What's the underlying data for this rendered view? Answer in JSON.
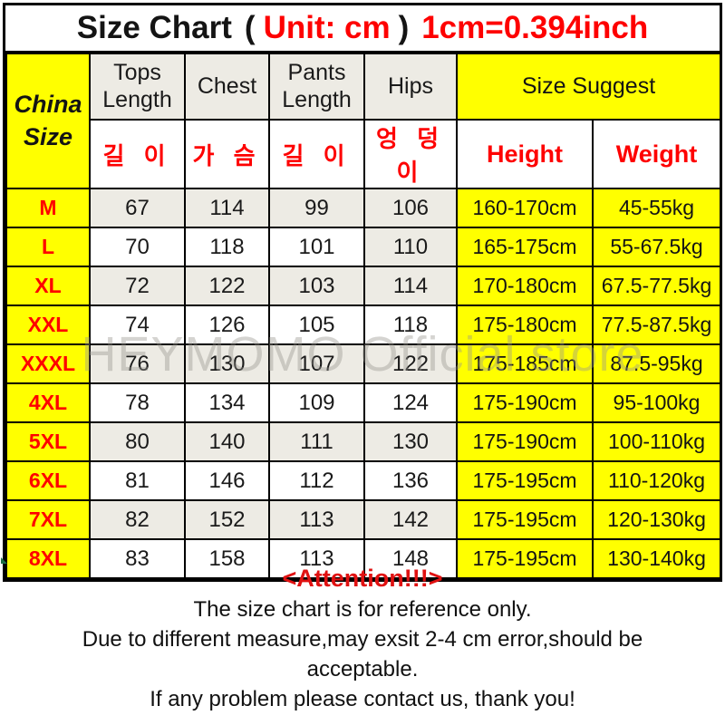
{
  "title": {
    "product": "Size Chart",
    "open_paren": "(",
    "unit": "Unit: cm",
    "close_paren": ")",
    "conversion": "1cm=0.394inch"
  },
  "table": {
    "corner_line1": "China",
    "corner_line2": "Size",
    "col_headers_en": [
      "Tops Length",
      "Chest",
      "Pants Length",
      "Hips"
    ],
    "size_suggest_label": "Size Suggest",
    "col_headers_kr": [
      "길 이",
      "가 슴",
      "길 이",
      "엉 덩 이"
    ],
    "height_label": "Height",
    "weight_label": "Weight",
    "rows": [
      {
        "size": "M",
        "tops": "67",
        "chest": "114",
        "pants": "99",
        "hips": "106",
        "height": "160-170cm",
        "weight": "45-55kg",
        "shade": [
          "g",
          "g",
          "g",
          "g"
        ]
      },
      {
        "size": "L",
        "tops": "70",
        "chest": "118",
        "pants": "101",
        "hips": "110",
        "height": "165-175cm",
        "weight": "55-67.5kg",
        "shade": [
          "w",
          "w",
          "w",
          "g"
        ]
      },
      {
        "size": "XL",
        "tops": "72",
        "chest": "122",
        "pants": "103",
        "hips": "114",
        "height": "170-180cm",
        "weight": "67.5-77.5kg",
        "shade": [
          "g",
          "g",
          "g",
          "g"
        ]
      },
      {
        "size": "XXL",
        "tops": "74",
        "chest": "126",
        "pants": "105",
        "hips": "118",
        "height": "175-180cm",
        "weight": "77.5-87.5kg",
        "shade": [
          "w",
          "w",
          "w",
          "w"
        ]
      },
      {
        "size": "XXXL",
        "tops": "76",
        "chest": "130",
        "pants": "107",
        "hips": "122",
        "height": "175-185cm",
        "weight": "87.5-95kg",
        "shade": [
          "g",
          "g",
          "g",
          "g"
        ]
      },
      {
        "size": "4XL",
        "tops": "78",
        "chest": "134",
        "pants": "109",
        "hips": "124",
        "height": "175-190cm",
        "weight": "95-100kg",
        "shade": [
          "w",
          "w",
          "w",
          "w"
        ]
      },
      {
        "size": "5XL",
        "tops": "80",
        "chest": "140",
        "pants": "111",
        "hips": "130",
        "height": "175-190cm",
        "weight": "100-110kg",
        "shade": [
          "g",
          "g",
          "g",
          "g"
        ]
      },
      {
        "size": "6XL",
        "tops": "81",
        "chest": "146",
        "pants": "112",
        "hips": "136",
        "height": "175-195cm",
        "weight": "110-120kg",
        "shade": [
          "w",
          "w",
          "w",
          "w"
        ]
      },
      {
        "size": "7XL",
        "tops": "82",
        "chest": "152",
        "pants": "113",
        "hips": "142",
        "height": "175-195cm",
        "weight": "120-130kg",
        "shade": [
          "g",
          "g",
          "g",
          "g"
        ]
      },
      {
        "size": "8XL",
        "tops": "83",
        "chest": "158",
        "pants": "113",
        "hips": "148",
        "height": "175-195cm",
        "weight": "130-140kg",
        "shade": [
          "w",
          "w",
          "w",
          "w"
        ]
      }
    ]
  },
  "watermark": "HEYMOMO Official store",
  "footer": {
    "attention": "<Attention!!!>",
    "lines": [
      "The size chart is for reference only.",
      "Due to different measure,may exsit 2-4 cm error,should be",
      "acceptable.",
      "If any problem please contact us, thank you!"
    ]
  },
  "colors": {
    "yellow": "#FFFF00",
    "red_text": "#FE0000",
    "attention_red": "#E01111",
    "shaded_cell": "#EDEBE4",
    "border": "#000000",
    "watermark_gray": "#98968F",
    "corner_artifact_green": "#1E7145"
  },
  "chart_data": {
    "type": "table",
    "title": "Size Chart ( Unit: cm ) 1cm=0.394inch",
    "columns": [
      "China Size",
      "Tops Length 길이 (cm)",
      "Chest 가슴 (cm)",
      "Pants Length 길이 (cm)",
      "Hips 엉덩이 (cm)",
      "Height",
      "Weight"
    ],
    "rows": [
      [
        "M",
        67,
        114,
        99,
        106,
        "160-170cm",
        "45-55kg"
      ],
      [
        "L",
        70,
        118,
        101,
        110,
        "165-175cm",
        "55-67.5kg"
      ],
      [
        "XL",
        72,
        122,
        103,
        114,
        "170-180cm",
        "67.5-77.5kg"
      ],
      [
        "XXL",
        74,
        126,
        105,
        118,
        "175-180cm",
        "77.5-87.5kg"
      ],
      [
        "XXXL",
        76,
        130,
        107,
        122,
        "175-185cm",
        "87.5-95kg"
      ],
      [
        "4XL",
        78,
        134,
        109,
        124,
        "175-190cm",
        "95-100kg"
      ],
      [
        "5XL",
        80,
        140,
        111,
        130,
        "175-190cm",
        "100-110kg"
      ],
      [
        "6XL",
        81,
        146,
        112,
        136,
        "175-195cm",
        "110-120kg"
      ],
      [
        "7XL",
        82,
        152,
        113,
        142,
        "175-195cm",
        "120-130kg"
      ],
      [
        "8XL",
        83,
        158,
        113,
        148,
        "175-195cm",
        "130-140kg"
      ]
    ]
  }
}
